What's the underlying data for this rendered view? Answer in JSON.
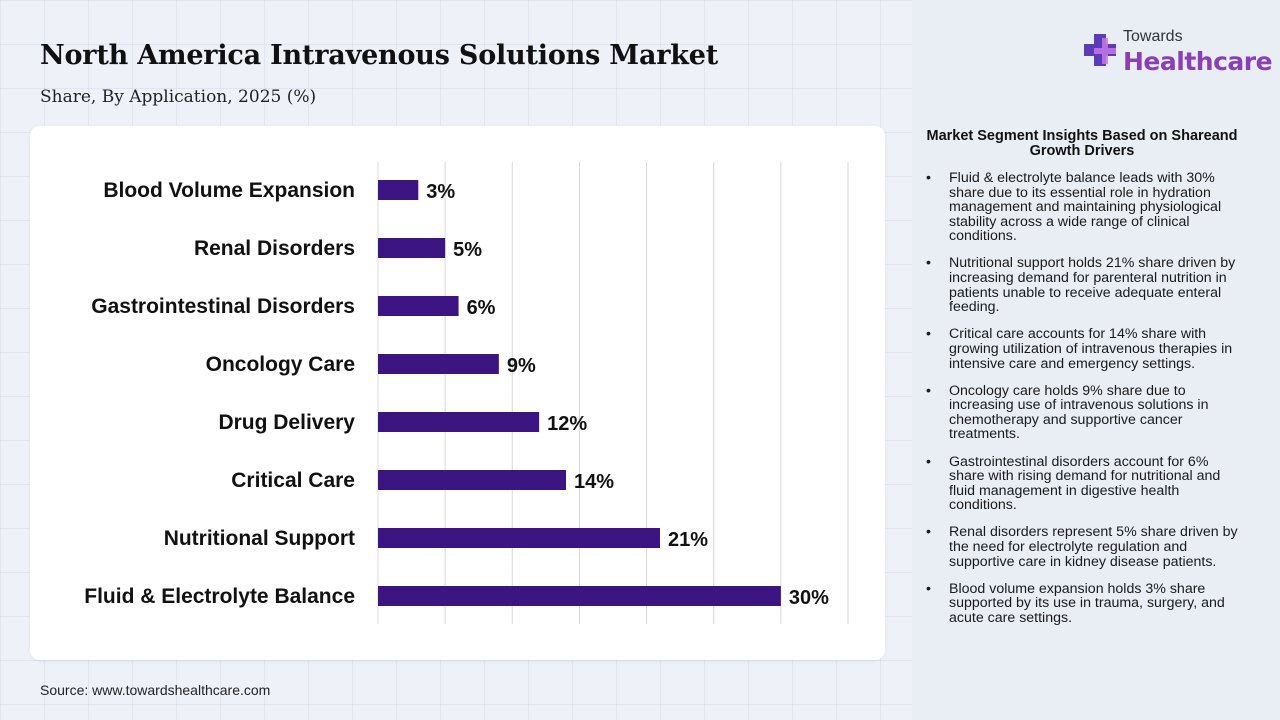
{
  "header": {
    "title": "North America Intravenous Solutions Market",
    "subtitle": "Share, By Application, 2025 (%)"
  },
  "source": "Source: www.towardshealthcare.com",
  "logo": {
    "line1": "Towards",
    "line2": "Healthcare",
    "icon": "medical-cross-icon",
    "color": "#8a3fb7"
  },
  "colors": {
    "bar": "#3d1582",
    "grid": "#d8d8d8"
  },
  "chart_data": {
    "type": "bar",
    "orientation": "horizontal",
    "categories": [
      "Blood Volume Expansion",
      "Renal Disorders",
      "Gastrointestinal Disorders",
      "Oncology Care",
      "Drug Delivery",
      "Critical Care",
      "Nutritional Support",
      "Fluid & Electrolyte Balance"
    ],
    "values": [
      3,
      5,
      6,
      9,
      12,
      14,
      21,
      30
    ],
    "value_labels": [
      "3%",
      "5%",
      "6%",
      "9%",
      "12%",
      "14%",
      "21%",
      "30%"
    ],
    "xlim": [
      0,
      35
    ],
    "grid": true,
    "legend": "none"
  },
  "insights": {
    "title": "Market Segment Insights Based on Shareand Growth Drivers",
    "items": [
      "Fluid & electrolyte balance leads with 30% share due to its essential role in hydration management and maintaining physiological stability across a wide range of clinical conditions.",
      "Nutritional support holds 21% share driven by increasing demand for parenteral nutrition in patients unable to receive adequate enteral feeding.",
      "Critical care accounts for 14% share with growing utilization of intravenous therapies in intensive care and emergency settings.",
      "Oncology care holds 9% share due to increasing use of intravenous solutions in chemotherapy and supportive cancer treatments.",
      "Gastrointestinal disorders account for 6% share with rising demand for nutritional and fluid management in digestive health conditions.",
      "Renal disorders represent 5% share driven by the need for electrolyte regulation and supportive care in kidney disease patients.",
      "Blood volume expansion holds 3% share supported by its use in trauma, surgery, and acute care settings."
    ]
  }
}
